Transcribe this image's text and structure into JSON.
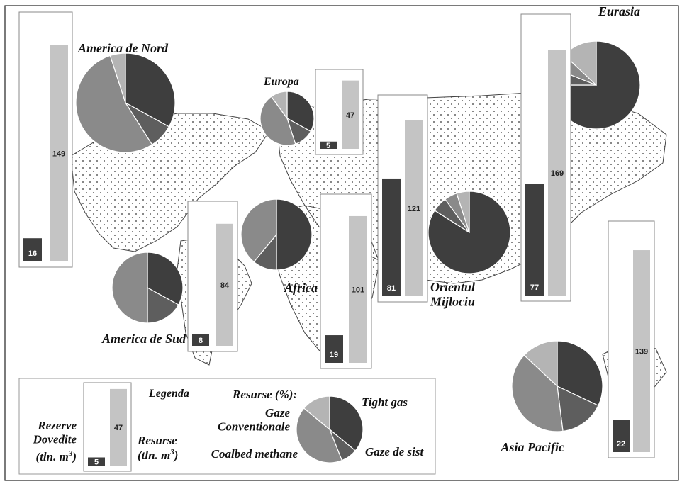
{
  "chart_data": {
    "type": "bar",
    "unit": "tln. m3",
    "regions": [
      {
        "name": "America de Nord",
        "proved": 16,
        "resources": 149,
        "resources_pct": {
          "Gaze Conventionale": 33,
          "Tight gas": 8,
          "Gaze de sist": 54,
          "Coalbed methane": 5
        }
      },
      {
        "name": "Europa",
        "proved": 5,
        "resources": 47,
        "resources_pct": {
          "Gaze Conventionale": 33,
          "Tight gas": 12,
          "Gaze de sist": 45,
          "Coalbed methane": 10
        }
      },
      {
        "name": "Eurasia",
        "proved": 77,
        "resources": 169,
        "resources_pct": {
          "Gaze Conventionale": 75,
          "Tight gas": 6,
          "Gaze de sist": 6,
          "Coalbed methane": 13
        }
      },
      {
        "name": "America de Sud",
        "proved": 8,
        "resources": 84,
        "resources_pct": {
          "Gaze Conventionale": 33,
          "Tight gas": 17,
          "Gaze de sist": 50,
          "Coalbed methane": 0
        }
      },
      {
        "name": "Africa",
        "proved": 19,
        "resources": 101,
        "resources_pct": {
          "Gaze Conventionale": 50,
          "Tight gas": 11,
          "Gaze de sist": 39,
          "Coalbed methane": 0
        }
      },
      {
        "name": "Orientul Mijlociu",
        "proved": 81,
        "resources": 121,
        "resources_pct": {
          "Gaze Conventionale": 84,
          "Tight gas": 6,
          "Gaze de sist": 5,
          "Coalbed methane": 5
        }
      },
      {
        "name": "Asia Pacific",
        "proved": 22,
        "resources": 139,
        "resources_pct": {
          "Gaze Conventionale": 32,
          "Tight gas": 16,
          "Gaze de sist": 39,
          "Coalbed methane": 13
        }
      }
    ],
    "legend": {
      "title": "Legenda",
      "bar_proved_label": "Rezerve Dovedite",
      "bar_resources_label": "Resurse",
      "unit_label": "(tln. m",
      "unit_superscript": "3",
      "unit_close": ")",
      "example_proved": 5,
      "example_resources": 47,
      "pie_title": "Resurse (%):",
      "categories": [
        "Gaze Conventionale",
        "Tight gas",
        "Gaze de sist",
        "Coalbed methane"
      ],
      "example_pct": [
        36,
        8,
        42,
        14
      ]
    },
    "colors": {
      "proved": "#3e3e3e",
      "resources": "#c4c4c4",
      "Gaze Conventionale": "#3e3e3e",
      "Tight gas": "#5e5e5e",
      "Gaze de sist": "#8a8a8a",
      "Coalbed methane": "#b4b4b4"
    }
  }
}
